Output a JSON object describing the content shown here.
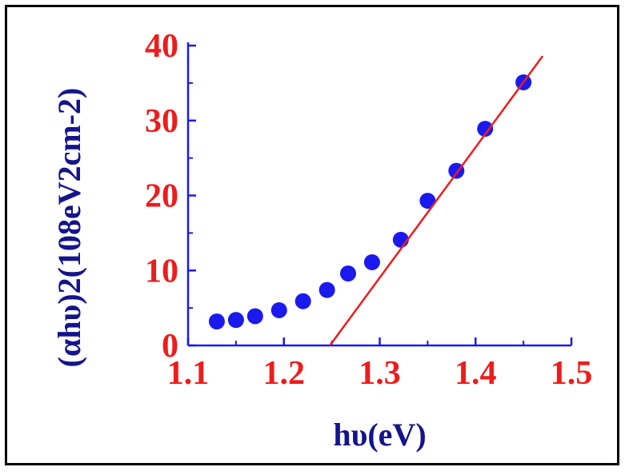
{
  "chart_data": {
    "type": "scatter",
    "xlabel": "hυ(eV)",
    "ylabel": "(αhυ)2(108eV2cm-2)",
    "xlim": [
      1.1,
      1.5
    ],
    "ylim": [
      0,
      40
    ],
    "x_ticks": [
      "1.1",
      "1.2",
      "1.3",
      "1.4",
      "1.5"
    ],
    "y_ticks": [
      "0",
      "10",
      "20",
      "30",
      "40"
    ],
    "series": [
      {
        "type": "scatter",
        "color": "#1a1aee",
        "points": [
          {
            "x": 1.13,
            "y": 3.2
          },
          {
            "x": 1.15,
            "y": 3.4
          },
          {
            "x": 1.17,
            "y": 3.9
          },
          {
            "x": 1.195,
            "y": 4.7
          },
          {
            "x": 1.22,
            "y": 5.9
          },
          {
            "x": 1.245,
            "y": 7.4
          },
          {
            "x": 1.267,
            "y": 9.6
          },
          {
            "x": 1.292,
            "y": 11.1
          },
          {
            "x": 1.322,
            "y": 14.1
          },
          {
            "x": 1.35,
            "y": 19.3
          },
          {
            "x": 1.38,
            "y": 23.3
          },
          {
            "x": 1.41,
            "y": 28.9
          },
          {
            "x": 1.45,
            "y": 35.1
          }
        ]
      },
      {
        "type": "line",
        "color": "#ee1c1c",
        "points": [
          {
            "x": 1.248,
            "y": 0
          },
          {
            "x": 1.47,
            "y": 38.6
          }
        ]
      }
    ],
    "axis_colors": {
      "ticks": "#ee1c1c",
      "titles": "#14148c",
      "axes": "#1a1aee"
    },
    "grid": false
  }
}
